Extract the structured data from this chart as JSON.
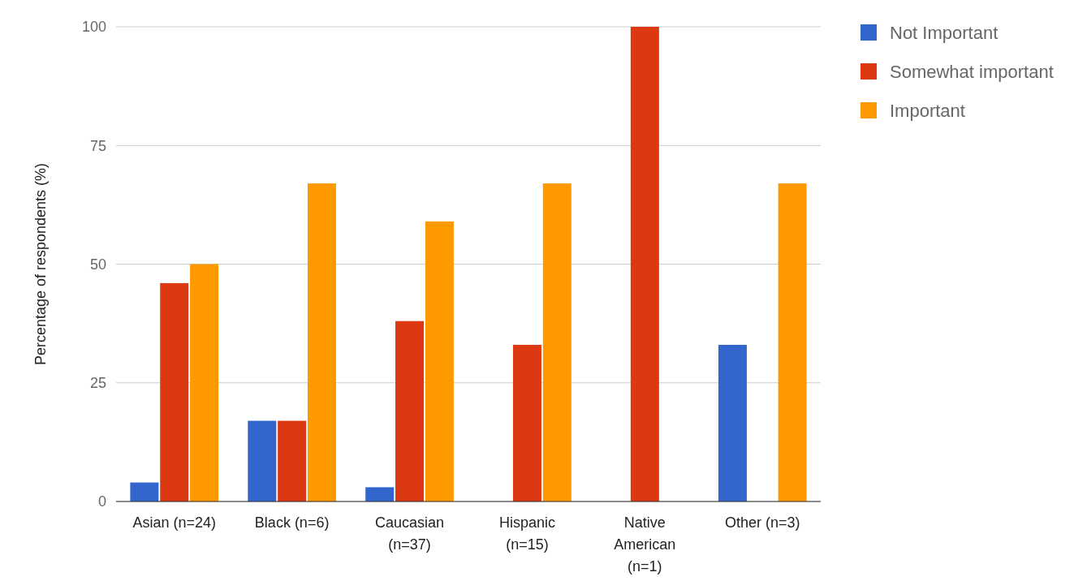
{
  "chart_data": {
    "type": "bar",
    "ylabel": "Percentage of respondents (%)",
    "categories": [
      "Asian (n=24)",
      "Black (n=6)",
      "Caucasian (n=37)",
      "Hispanic (n=15)",
      "Native American (n=1)",
      "Other (n=3)"
    ],
    "series": [
      {
        "name": "Not Important",
        "color": "#3366cc",
        "values": [
          4,
          17,
          3,
          0,
          0,
          33
        ]
      },
      {
        "name": "Somewhat important",
        "color": "#dc3912",
        "values": [
          46,
          17,
          38,
          33,
          100,
          0
        ]
      },
      {
        "name": "Important",
        "color": "#ff9900",
        "values": [
          50,
          67,
          59,
          67,
          0,
          67
        ]
      }
    ],
    "ylim": [
      0,
      100
    ],
    "yticks": [
      0,
      25,
      50,
      75,
      100
    ],
    "grid": "y",
    "legend": "top right"
  }
}
